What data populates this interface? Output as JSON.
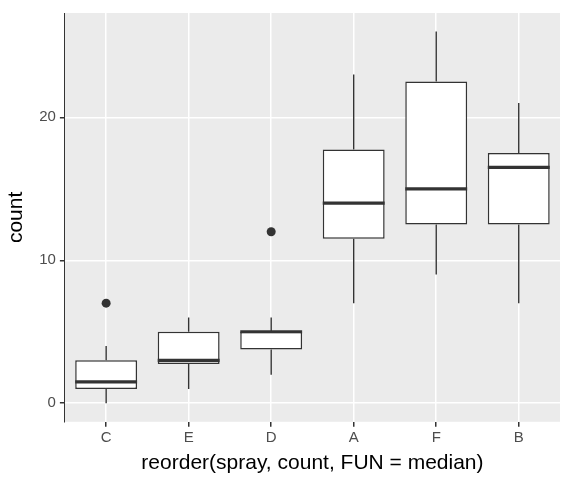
{
  "chart_data": {
    "type": "boxplot",
    "x_label": "reorder(spray, count, FUN = median)",
    "y_label": "count",
    "categories": [
      "C",
      "E",
      "D",
      "A",
      "F",
      "B"
    ],
    "values": [
      {
        "min": 0,
        "q1": 1,
        "median": 1.5,
        "q3": 3,
        "max": 4,
        "outliers": [
          7
        ]
      },
      {
        "min": 1,
        "q1": 2.75,
        "median": 3,
        "q3": 5,
        "max": 6,
        "outliers": []
      },
      {
        "min": 2,
        "q1": 3.75,
        "median": 5,
        "q3": 5,
        "max": 6,
        "outliers": [
          12
        ]
      },
      {
        "min": 7,
        "q1": 11.5,
        "median": 14,
        "q3": 17.75,
        "max": 23,
        "outliers": []
      },
      {
        "min": 9,
        "q1": 12.5,
        "median": 15,
        "q3": 22.5,
        "max": 26,
        "outliers": []
      },
      {
        "min": 7,
        "q1": 12.5,
        "median": 16.5,
        "q3": 17.5,
        "max": 21,
        "outliers": []
      }
    ],
    "color": "#333333",
    "ylim": [
      -1.3,
      27.3
    ],
    "yticks": [
      0,
      10,
      20
    ],
    "grid": true
  }
}
